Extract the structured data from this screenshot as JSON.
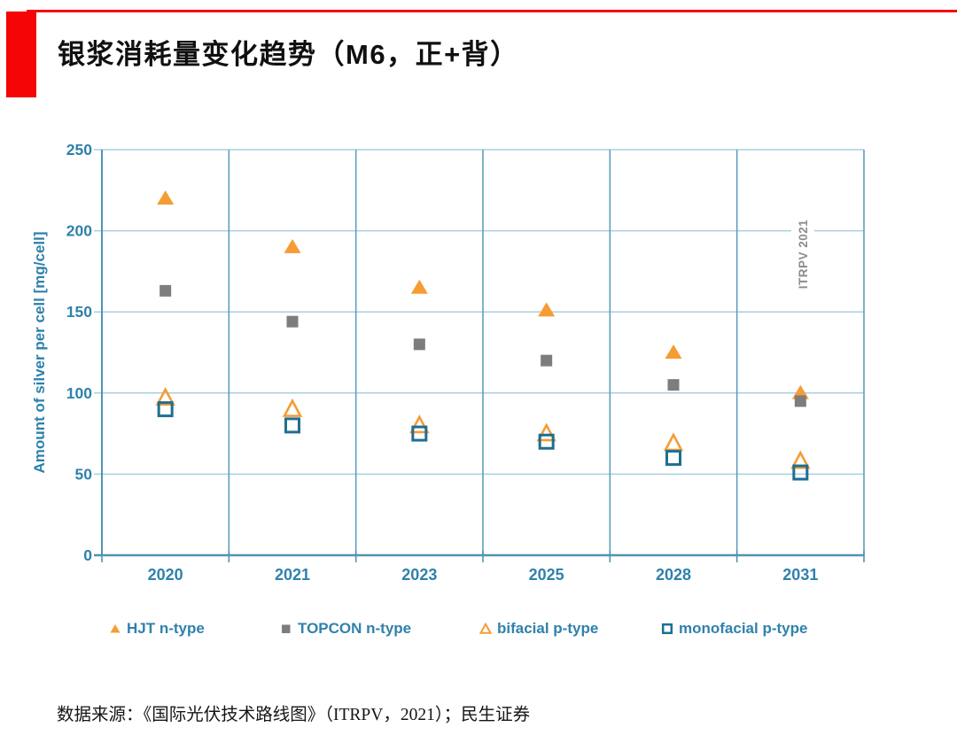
{
  "header": {
    "title": "银浆消耗量变化趋势（M6，正+背）"
  },
  "footer": {
    "source": "数据来源：《国际光伏技术路线图》（ITRPV，2021）；民生证券"
  },
  "colors": {
    "accent_red": "#f50505",
    "axis_text_blue": "#2f81ac",
    "grid_light_blue": "#a9cfe0",
    "column_line_blue": "#5e9fbd",
    "axis_line_blue": "#4e94b5",
    "hjt_orange": "#f59c33",
    "topcon_gray": "#7d7d7d",
    "monofacial_blue": "#1f6e93",
    "annotation_gray": "#8c8c8c"
  },
  "chart_data": {
    "type": "scatter",
    "title": "",
    "categories": [
      "2020",
      "2021",
      "2023",
      "2025",
      "2028",
      "2031"
    ],
    "series": [
      {
        "name": "HJT n-type",
        "marker": "triangle-filled",
        "color": "#f59c33",
        "values": [
          220,
          190,
          165,
          151,
          125,
          100
        ]
      },
      {
        "name": "TOPCON n-type",
        "marker": "square-filled",
        "color": "#7d7d7d",
        "values": [
          163,
          144,
          130,
          120,
          105,
          95
        ]
      },
      {
        "name": "bifacial p-type",
        "marker": "triangle-open",
        "color": "#f59c33",
        "values": [
          97,
          90,
          80,
          75,
          69,
          58
        ]
      },
      {
        "name": "monofacial p-type",
        "marker": "square-open",
        "color": "#1f6e93",
        "values": [
          90,
          80,
          75,
          70,
          60,
          51
        ]
      }
    ],
    "xlabel": "",
    "ylabel": "Amount of silver per cell [mg/cell]",
    "ylim": [
      0,
      250
    ],
    "ytick_step": 50,
    "yticks": [
      0,
      50,
      100,
      150,
      200,
      250
    ],
    "grid": true,
    "legend_position": "bottom",
    "annotation": "ITRPV 2021"
  },
  "legend_x_positions": [
    122,
    315,
    540,
    745
  ]
}
